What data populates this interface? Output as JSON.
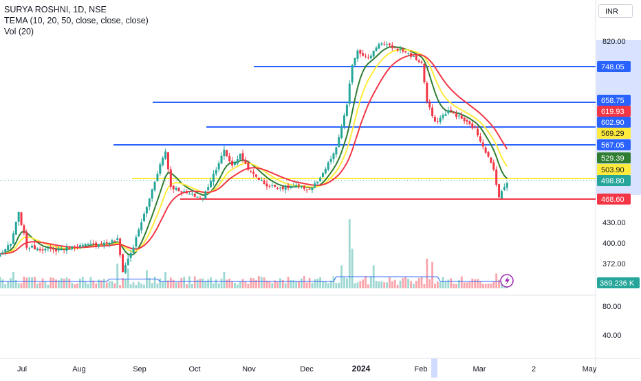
{
  "header": {
    "symbol_line": "SURYA ROSHNI, 1D, NSE",
    "indicator_line": "TEMA (10, 20, 50, close, close, close)",
    "volume_line": "Vol (20)",
    "currency": "INR"
  },
  "chart_data": {
    "type": "candlestick",
    "price_axis_ticks": [
      "820.00",
      "430.00",
      "400.00",
      "372.00"
    ],
    "volume_axis_ticks": [
      "80.00",
      "40.00"
    ],
    "time_axis_ticks": [
      "Jul",
      "Aug",
      "Sep",
      "Oct",
      "Nov",
      "Dec",
      "2024",
      "Feb",
      "Mar",
      "2",
      "May"
    ],
    "price_labels": [
      {
        "text": "748.05",
        "color": "#2962ff",
        "value": 748.05
      },
      {
        "text": "658.75",
        "color": "#2962ff",
        "value": 658.75
      },
      {
        "text": "619.93",
        "color": "#f23645",
        "value": 619.93
      },
      {
        "text": "602.90",
        "color": "#2962ff",
        "value": 602.9
      },
      {
        "text": "569.29",
        "color": "#ffeb3b",
        "value": 569.29
      },
      {
        "text": "567.05",
        "color": "#2962ff",
        "value": 567.05
      },
      {
        "text": "529.39",
        "color": "#2e7d32",
        "value": 529.39
      },
      {
        "text": "503.90",
        "color": "#ffeb3b",
        "value": 503.9
      },
      {
        "text": "498.80",
        "color": "#26a69a",
        "value": 498.8
      },
      {
        "text": "468.60",
        "color": "#f23645",
        "value": 468.6
      }
    ],
    "volume_label": {
      "text": "369.236 K",
      "color": "#26a69a"
    },
    "horizontal_levels": [
      {
        "value": 748.05,
        "color": "#2962ff",
        "from": "Nov",
        "to": "end"
      },
      {
        "value": 658.75,
        "color": "#2962ff",
        "from": "Sep",
        "to": "end"
      },
      {
        "value": 602.9,
        "color": "#2962ff",
        "from": "Oct",
        "to": "end"
      },
      {
        "value": 567.05,
        "color": "#2962ff",
        "from": "Aug",
        "to": "end"
      },
      {
        "value": 503.9,
        "color": "#ffeb3b",
        "from": "Sep",
        "to": "end"
      },
      {
        "value": 468.6,
        "color": "#f23645",
        "from": "Sep",
        "to": "end"
      }
    ],
    "colors": {
      "up": "#26a69a",
      "down": "#f23645",
      "tema10": "#2e7d32",
      "tema20": "#ffeb3b",
      "tema50": "#f23645",
      "volume_ma": "#2962ff"
    },
    "close_anchors": [
      {
        "i": 0,
        "v": 385
      },
      {
        "i": 4,
        "v": 398
      },
      {
        "i": 7,
        "v": 445
      },
      {
        "i": 10,
        "v": 395
      },
      {
        "i": 20,
        "v": 390
      },
      {
        "i": 30,
        "v": 396
      },
      {
        "i": 40,
        "v": 400
      },
      {
        "i": 44,
        "v": 405
      },
      {
        "i": 46,
        "v": 362
      },
      {
        "i": 50,
        "v": 395
      },
      {
        "i": 55,
        "v": 455
      },
      {
        "i": 60,
        "v": 530
      },
      {
        "i": 62,
        "v": 555
      },
      {
        "i": 64,
        "v": 490
      },
      {
        "i": 70,
        "v": 478
      },
      {
        "i": 76,
        "v": 470
      },
      {
        "i": 80,
        "v": 512
      },
      {
        "i": 84,
        "v": 556
      },
      {
        "i": 87,
        "v": 528
      },
      {
        "i": 90,
        "v": 548
      },
      {
        "i": 94,
        "v": 515
      },
      {
        "i": 100,
        "v": 492
      },
      {
        "i": 106,
        "v": 488
      },
      {
        "i": 112,
        "v": 490
      },
      {
        "i": 116,
        "v": 485
      },
      {
        "i": 120,
        "v": 503
      },
      {
        "i": 126,
        "v": 560
      },
      {
        "i": 130,
        "v": 650
      },
      {
        "i": 132,
        "v": 755
      },
      {
        "i": 134,
        "v": 795
      },
      {
        "i": 138,
        "v": 770
      },
      {
        "i": 142,
        "v": 815
      },
      {
        "i": 148,
        "v": 800
      },
      {
        "i": 152,
        "v": 790
      },
      {
        "i": 158,
        "v": 758
      },
      {
        "i": 160,
        "v": 660
      },
      {
        "i": 163,
        "v": 612
      },
      {
        "i": 168,
        "v": 640
      },
      {
        "i": 173,
        "v": 622
      },
      {
        "i": 178,
        "v": 598
      },
      {
        "i": 182,
        "v": 555
      },
      {
        "i": 185,
        "v": 520
      },
      {
        "i": 187,
        "v": 472
      },
      {
        "i": 190,
        "v": 498
      }
    ],
    "volume_spikes": [
      {
        "i": 5,
        "v": 1.0
      },
      {
        "i": 44,
        "v": 1.5
      },
      {
        "i": 48,
        "v": 1.2
      },
      {
        "i": 55,
        "v": 1.1
      },
      {
        "i": 62,
        "v": 1.0
      },
      {
        "i": 84,
        "v": 1.0
      },
      {
        "i": 128,
        "v": 1.4
      },
      {
        "i": 131,
        "v": 4.2
      },
      {
        "i": 132,
        "v": 2.4
      },
      {
        "i": 140,
        "v": 1.4
      },
      {
        "i": 160,
        "v": 1.8
      },
      {
        "i": 162,
        "v": 1.6
      },
      {
        "i": 186,
        "v": 0.9
      }
    ]
  }
}
